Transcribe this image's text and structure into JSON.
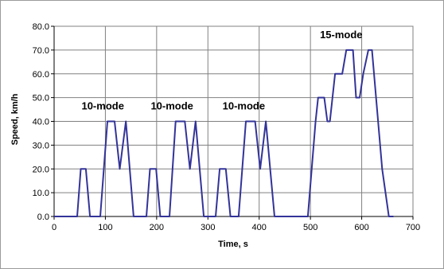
{
  "chart_data": {
    "type": "line",
    "title": "",
    "xlabel": "Time, s",
    "ylabel": "Speed, km/h",
    "xlim": [
      0,
      700
    ],
    "ylim": [
      0,
      80
    ],
    "x_ticks": [
      "0",
      "100",
      "200",
      "300",
      "400",
      "500",
      "600",
      "700"
    ],
    "y_ticks": [
      "0.0",
      "10.0",
      "20.0",
      "30.0",
      "40.0",
      "50.0",
      "60.0",
      "70.0",
      "80.0"
    ],
    "grid": true,
    "legend": "none",
    "line_color": "#333399",
    "annotations": [
      {
        "text": "10-mode",
        "x": 95,
        "y": 45
      },
      {
        "text": "10-mode",
        "x": 230,
        "y": 45
      },
      {
        "text": "10-mode",
        "x": 370,
        "y": 45
      },
      {
        "text": "15-mode",
        "x": 560,
        "y": 75
      }
    ],
    "series": [
      {
        "values": [
          [
            0,
            0
          ],
          [
            45,
            0
          ],
          [
            52,
            20
          ],
          [
            62,
            20
          ],
          [
            70,
            0
          ],
          [
            90,
            0
          ],
          [
            104,
            40
          ],
          [
            118,
            40
          ],
          [
            128,
            20
          ],
          [
            140,
            40
          ],
          [
            155,
            0
          ],
          [
            180,
            0
          ],
          [
            187,
            20
          ],
          [
            199,
            20
          ],
          [
            207,
            0
          ],
          [
            225,
            0
          ],
          [
            237,
            40
          ],
          [
            255,
            40
          ],
          [
            265,
            20
          ],
          [
            276,
            40
          ],
          [
            292,
            0
          ],
          [
            315,
            0
          ],
          [
            323,
            20
          ],
          [
            335,
            20
          ],
          [
            344,
            0
          ],
          [
            360,
            0
          ],
          [
            374,
            40
          ],
          [
            392,
            40
          ],
          [
            402,
            20
          ],
          [
            413,
            40
          ],
          [
            430,
            0
          ],
          [
            495,
            0
          ],
          [
            510,
            40
          ],
          [
            515,
            50
          ],
          [
            527,
            50
          ],
          [
            533,
            40
          ],
          [
            538,
            40
          ],
          [
            548,
            60
          ],
          [
            562,
            60
          ],
          [
            570,
            70
          ],
          [
            583,
            70
          ],
          [
            589,
            50
          ],
          [
            596,
            50
          ],
          [
            603,
            60
          ],
          [
            613,
            70
          ],
          [
            620,
            70
          ],
          [
            640,
            20
          ],
          [
            653,
            0
          ],
          [
            662,
            0
          ]
        ]
      }
    ]
  }
}
